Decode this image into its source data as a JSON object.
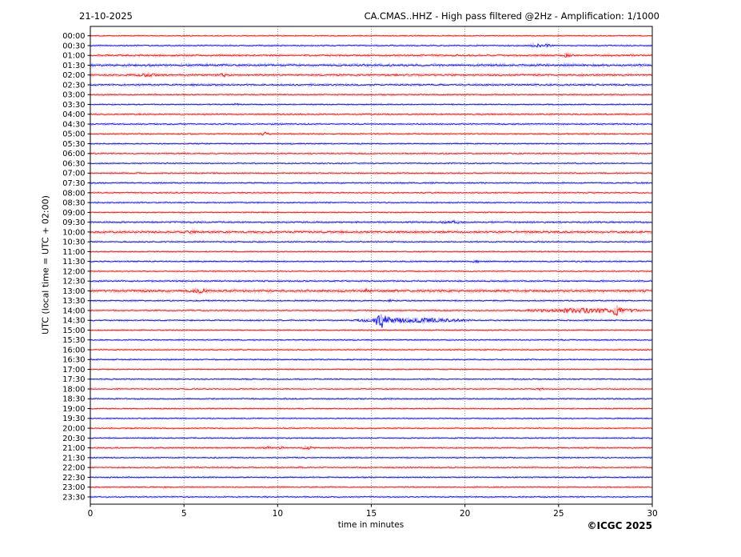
{
  "header": {
    "date": "21-10-2025",
    "title": "CA.CMAS..HHZ - High pass filtered @2Hz - Amplification: 1/1000"
  },
  "footer": {
    "copyright": "©ICGC 2025"
  },
  "chart_data": {
    "type": "line",
    "subtype": "helicorder-seismogram",
    "station": "CA.CMAS..HHZ",
    "date": "21-10-2025",
    "title": "CA.CMAS..HHZ - High pass filtered @2Hz - Amplification: 1/1000",
    "xlabel": "time in minutes",
    "ylabel": "UTC (local time = UTC + 02:00)",
    "xlim": [
      0,
      30
    ],
    "x_ticks": [
      0,
      5,
      10,
      15,
      20,
      25,
      30
    ],
    "grid_minutes": [
      5,
      10,
      15,
      20,
      25
    ],
    "row_interval_minutes": 30,
    "grid_on": true,
    "grid_color": "#777777",
    "trace_colors": {
      "even_rows": "#ff0000",
      "odd_rows": "#0000ff"
    },
    "events_format": "[center_minute, amplitude_px, sigma_minutes]",
    "rows": [
      {
        "time": "00:00",
        "noise": 0.8,
        "events": []
      },
      {
        "time": "00:30",
        "noise": 0.9,
        "events": [
          [
            23.8,
            1.7,
            0.22
          ],
          [
            24.35,
            1.7,
            0.18
          ]
        ]
      },
      {
        "time": "01:00",
        "noise": 1.3,
        "events": [
          [
            25.45,
            1.9,
            0.15
          ]
        ]
      },
      {
        "time": "01:30",
        "noise": 1.6,
        "events": []
      },
      {
        "time": "02:00",
        "noise": 1.4,
        "events": [
          [
            2.95,
            1.6,
            0.28
          ],
          [
            3.45,
            1.1,
            0.12
          ],
          [
            7.1,
            1.5,
            0.18
          ]
        ]
      },
      {
        "time": "02:30",
        "noise": 1.3,
        "events": []
      },
      {
        "time": "03:00",
        "noise": 1.0,
        "events": []
      },
      {
        "time": "03:30",
        "noise": 0.9,
        "events": [
          [
            7.8,
            0.9,
            0.08
          ]
        ]
      },
      {
        "time": "04:00",
        "noise": 1.1,
        "events": []
      },
      {
        "time": "04:30",
        "noise": 1.0,
        "events": []
      },
      {
        "time": "05:00",
        "noise": 1.0,
        "events": [
          [
            9.35,
            1.9,
            0.14
          ]
        ]
      },
      {
        "time": "05:30",
        "noise": 0.9,
        "events": []
      },
      {
        "time": "06:00",
        "noise": 1.0,
        "events": []
      },
      {
        "time": "06:30",
        "noise": 0.9,
        "events": []
      },
      {
        "time": "07:00",
        "noise": 1.0,
        "events": []
      },
      {
        "time": "07:30",
        "noise": 1.0,
        "events": []
      },
      {
        "time": "08:00",
        "noise": 1.0,
        "events": []
      },
      {
        "time": "08:30",
        "noise": 0.9,
        "events": []
      },
      {
        "time": "09:00",
        "noise": 0.9,
        "events": []
      },
      {
        "time": "09:30",
        "noise": 1.2,
        "events": [
          [
            19.3,
            1.5,
            0.35
          ]
        ]
      },
      {
        "time": "10:00",
        "noise": 1.7,
        "events": [
          [
            5.35,
            1.3,
            0.15
          ]
        ]
      },
      {
        "time": "10:30",
        "noise": 1.0,
        "events": []
      },
      {
        "time": "11:00",
        "noise": 0.9,
        "events": []
      },
      {
        "time": "11:30",
        "noise": 1.0,
        "events": [
          [
            20.65,
            1.1,
            0.12
          ]
        ]
      },
      {
        "time": "12:00",
        "noise": 0.9,
        "events": []
      },
      {
        "time": "12:30",
        "noise": 1.1,
        "events": []
      },
      {
        "time": "13:00",
        "noise": 1.8,
        "events": [
          [
            2.95,
            1.3,
            0.12
          ],
          [
            5.8,
            2.1,
            0.25
          ],
          [
            14.75,
            1.4,
            0.15
          ]
        ]
      },
      {
        "time": "13:30",
        "noise": 1.0,
        "events": [
          [
            16.0,
            0.9,
            0.08
          ]
        ]
      },
      {
        "time": "14:00",
        "noise": 1.0,
        "events": [
          [
            24.0,
            1.1,
            0.7
          ],
          [
            25.6,
            2.3,
            0.5
          ],
          [
            26.6,
            2.4,
            0.45
          ],
          [
            27.3,
            2.0,
            0.25
          ],
          [
            28.0,
            8.5,
            0.13
          ],
          [
            28.35,
            3.2,
            0.22
          ],
          [
            29.0,
            1.4,
            0.4
          ]
        ]
      },
      {
        "time": "14:30",
        "noise": 1.0,
        "events": [
          [
            14.6,
            1.4,
            0.3
          ],
          [
            15.45,
            10.5,
            0.16
          ],
          [
            15.85,
            3.8,
            0.2
          ],
          [
            16.6,
            2.2,
            0.4
          ],
          [
            17.6,
            2.2,
            0.5
          ],
          [
            18.5,
            1.4,
            0.5
          ],
          [
            19.6,
            1.0,
            0.5
          ]
        ]
      },
      {
        "time": "15:00",
        "noise": 0.9,
        "events": []
      },
      {
        "time": "15:30",
        "noise": 0.9,
        "events": []
      },
      {
        "time": "16:00",
        "noise": 0.9,
        "events": []
      },
      {
        "time": "16:30",
        "noise": 0.9,
        "events": []
      },
      {
        "time": "17:00",
        "noise": 0.8,
        "events": []
      },
      {
        "time": "17:30",
        "noise": 0.9,
        "events": []
      },
      {
        "time": "18:00",
        "noise": 0.9,
        "events": [
          [
            24.05,
            1.9,
            0.08
          ]
        ]
      },
      {
        "time": "18:30",
        "noise": 1.0,
        "events": []
      },
      {
        "time": "19:00",
        "noise": 0.9,
        "events": []
      },
      {
        "time": "19:30",
        "noise": 0.8,
        "events": []
      },
      {
        "time": "20:00",
        "noise": 0.9,
        "events": []
      },
      {
        "time": "20:30",
        "noise": 0.9,
        "events": []
      },
      {
        "time": "21:00",
        "noise": 1.0,
        "events": [
          [
            9.45,
            1.4,
            0.1
          ],
          [
            10.2,
            1.4,
            0.1
          ],
          [
            11.5,
            1.5,
            0.13
          ],
          [
            11.75,
            1.2,
            0.1
          ]
        ]
      },
      {
        "time": "21:30",
        "noise": 0.9,
        "events": []
      },
      {
        "time": "22:00",
        "noise": 1.0,
        "events": []
      },
      {
        "time": "22:30",
        "noise": 0.9,
        "events": []
      },
      {
        "time": "23:00",
        "noise": 0.9,
        "events": [
          [
            3.95,
            1.3,
            0.08
          ]
        ]
      },
      {
        "time": "23:30",
        "noise": 0.9,
        "events": []
      }
    ]
  }
}
